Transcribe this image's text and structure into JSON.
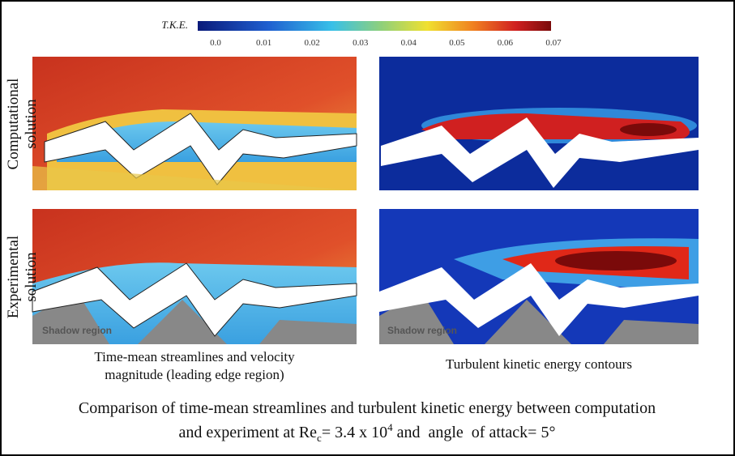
{
  "colorbar": {
    "label": "T.K.E.",
    "ticks": [
      "0.0",
      "0.01",
      "0.02",
      "0.03",
      "0.04",
      "0.05",
      "0.06",
      "0.07"
    ]
  },
  "row_labels": [
    [
      "Computational",
      "solution"
    ],
    [
      "Experimental",
      "solution"
    ]
  ],
  "shadow_labels": [
    "Shadow region",
    "Shadow region"
  ],
  "captions": {
    "left": [
      "Time-mean streamlines and velocity",
      "magnitude (leading edge region)"
    ],
    "right": "Turbulent kinetic energy contours"
  },
  "figure_caption": {
    "line1": "Comparison of time-mean streamlines and turbulent kinetic energy between computation",
    "line2": {
      "before": "and experiment at Re",
      "subscript": "c",
      "middle": "= 3.4 x 10",
      "superscript": "4",
      "after": " and  angle  of attack= 5°"
    }
  }
}
